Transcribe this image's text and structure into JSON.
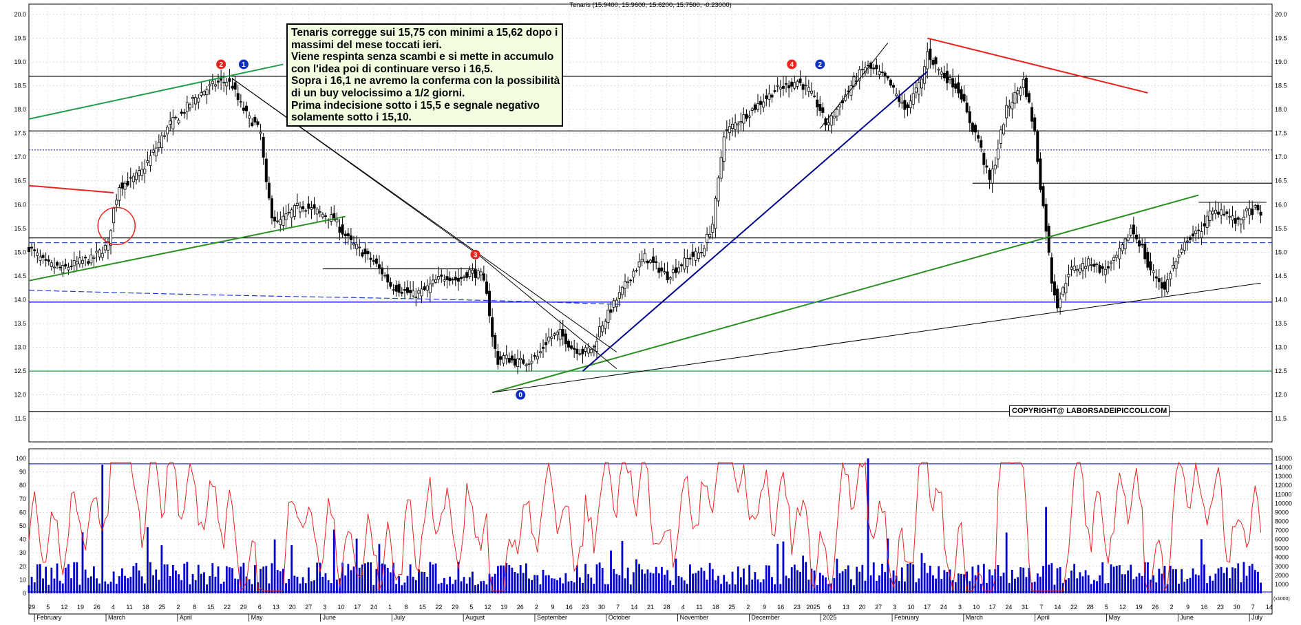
{
  "chart_data": [
    {
      "type": "candlestick",
      "title": "Tenaris (15.9400, 15.9600, 15.6200, 15.7500, -0.23000)",
      "y_ticks": [
        "20.0",
        "19.5",
        "19.0",
        "18.5",
        "18.0",
        "17.5",
        "17.0",
        "16.5",
        "16.0",
        "15.5",
        "15.0",
        "14.5",
        "14.0",
        "13.5",
        "13.0",
        "12.5",
        "12.0",
        "11.5"
      ],
      "ylim": [
        11.3,
        20.1
      ],
      "close_path": [
        [
          0,
          15.1
        ],
        [
          6,
          14.75
        ],
        [
          12,
          14.65
        ],
        [
          18,
          14.8
        ],
        [
          22,
          14.85
        ],
        [
          26,
          15.05
        ],
        [
          28,
          15.15
        ],
        [
          30,
          15.9
        ],
        [
          32,
          16.4
        ],
        [
          36,
          16.5
        ],
        [
          40,
          16.7
        ],
        [
          44,
          17.1
        ],
        [
          48,
          17.5
        ],
        [
          50,
          17.7
        ],
        [
          54,
          17.9
        ],
        [
          58,
          18.2
        ],
        [
          62,
          18.4
        ],
        [
          66,
          18.55
        ],
        [
          70,
          18.6
        ],
        [
          72,
          18.5
        ],
        [
          74,
          18.2
        ],
        [
          78,
          17.8
        ],
        [
          80,
          17.7
        ],
        [
          82,
          17.5
        ],
        [
          84,
          16.4
        ],
        [
          86,
          15.8
        ],
        [
          88,
          15.6
        ],
        [
          92,
          15.8
        ],
        [
          96,
          16.0
        ],
        [
          100,
          15.9
        ],
        [
          104,
          15.8
        ],
        [
          108,
          15.7
        ],
        [
          110,
          15.5
        ],
        [
          114,
          15.2
        ],
        [
          118,
          15.0
        ],
        [
          122,
          14.8
        ],
        [
          126,
          14.5
        ],
        [
          128,
          14.3
        ],
        [
          132,
          14.2
        ],
        [
          136,
          14.1
        ],
        [
          140,
          14.2
        ],
        [
          144,
          14.4
        ],
        [
          148,
          14.5
        ],
        [
          152,
          14.4
        ],
        [
          156,
          14.6
        ],
        [
          160,
          14.5
        ],
        [
          162,
          14.2
        ],
        [
          164,
          13.2
        ],
        [
          166,
          12.7
        ],
        [
          168,
          12.8
        ],
        [
          172,
          12.7
        ],
        [
          176,
          12.7
        ],
        [
          180,
          12.8
        ],
        [
          184,
          13.2
        ],
        [
          188,
          13.3
        ],
        [
          192,
          13.0
        ],
        [
          196,
          12.9
        ],
        [
          200,
          13.0
        ],
        [
          202,
          13.4
        ],
        [
          206,
          13.8
        ],
        [
          210,
          14.2
        ],
        [
          214,
          14.6
        ],
        [
          218,
          14.9
        ],
        [
          222,
          14.7
        ],
        [
          226,
          14.5
        ],
        [
          230,
          14.7
        ],
        [
          234,
          14.9
        ],
        [
          238,
          15.0
        ],
        [
          240,
          15.3
        ],
        [
          242,
          15.6
        ],
        [
          244,
          16.5
        ],
        [
          246,
          17.5
        ],
        [
          248,
          17.6
        ],
        [
          252,
          17.8
        ],
        [
          256,
          18.0
        ],
        [
          260,
          18.2
        ],
        [
          264,
          18.4
        ],
        [
          268,
          18.5
        ],
        [
          272,
          18.6
        ],
        [
          276,
          18.4
        ],
        [
          280,
          18.0
        ],
        [
          282,
          17.7
        ],
        [
          284,
          17.8
        ],
        [
          288,
          18.2
        ],
        [
          292,
          18.6
        ],
        [
          296,
          18.9
        ],
        [
          300,
          18.8
        ],
        [
          304,
          18.6
        ],
        [
          308,
          18.2
        ],
        [
          310,
          18.0
        ],
        [
          312,
          18.2
        ],
        [
          316,
          18.6
        ],
        [
          318,
          19.2
        ],
        [
          320,
          19.0
        ],
        [
          324,
          18.7
        ],
        [
          328,
          18.5
        ],
        [
          330,
          18.3
        ],
        [
          332,
          17.9
        ],
        [
          334,
          17.6
        ],
        [
          336,
          17.4
        ],
        [
          338,
          16.9
        ],
        [
          340,
          16.5
        ],
        [
          342,
          16.9
        ],
        [
          344,
          17.5
        ],
        [
          346,
          18.0
        ],
        [
          348,
          18.2
        ],
        [
          352,
          18.6
        ],
        [
          354,
          18.1
        ],
        [
          356,
          17.5
        ],
        [
          358,
          16.4
        ],
        [
          360,
          15.5
        ],
        [
          362,
          14.4
        ],
        [
          364,
          13.9
        ],
        [
          366,
          14.2
        ],
        [
          368,
          14.6
        ],
        [
          372,
          14.7
        ],
        [
          376,
          14.8
        ],
        [
          380,
          14.6
        ],
        [
          384,
          14.8
        ],
        [
          388,
          15.2
        ],
        [
          390,
          15.5
        ],
        [
          392,
          15.3
        ],
        [
          394,
          15.1
        ],
        [
          396,
          14.7
        ],
        [
          400,
          14.4
        ],
        [
          402,
          14.2
        ],
        [
          404,
          14.6
        ],
        [
          408,
          15.0
        ],
        [
          410,
          15.3
        ],
        [
          414,
          15.4
        ],
        [
          418,
          15.8
        ],
        [
          422,
          15.9
        ],
        [
          426,
          15.7
        ],
        [
          428,
          15.6
        ],
        [
          430,
          15.8
        ],
        [
          434,
          15.9
        ],
        [
          436,
          15.75
        ]
      ],
      "trendlines": [
        {
          "color": "#1f9e4a",
          "from": [
            0,
            17.8
          ],
          "to": [
            90,
            18.95
          ]
        },
        {
          "color": "#2a8f1f",
          "from": [
            0,
            14.4
          ],
          "to": [
            112,
            15.75
          ]
        },
        {
          "color": "#2a8f1f",
          "from": [
            164,
            12.05
          ],
          "to": [
            414,
            16.2
          ]
        },
        {
          "color": "#e8241f",
          "from": [
            0,
            16.4
          ],
          "to": [
            30,
            16.25
          ]
        },
        {
          "color": "#e8241f",
          "from": [
            318,
            19.5
          ],
          "to": [
            396,
            18.35
          ]
        },
        {
          "color": "#00008c",
          "from": [
            196,
            12.5
          ],
          "to": [
            318,
            18.8
          ]
        },
        {
          "color": "#000000",
          "from": [
            72,
            18.65
          ],
          "to": [
            208,
            12.9
          ]
        },
        {
          "color": "#000000",
          "from": [
            72,
            18.65
          ],
          "to": [
            160,
            14.9
          ]
        },
        {
          "color": "#000000",
          "from": [
            160,
            14.9
          ],
          "to": [
            208,
            12.55
          ]
        },
        {
          "color": "#000000",
          "from": [
            164,
            12.05
          ],
          "to": [
            436,
            14.35
          ]
        },
        {
          "color": "#000000",
          "from": [
            280,
            17.6
          ],
          "to": [
            304,
            19.4
          ]
        }
      ],
      "horizontal_levels": [
        {
          "value": 18.7,
          "color": "#000000"
        },
        {
          "value": 17.55,
          "color": "#000000"
        },
        {
          "value": 17.15,
          "color": "#3030c0",
          "dotted": true
        },
        {
          "value": 16.45,
          "color": "#000000",
          "from": 334
        },
        {
          "value": 15.3,
          "color": "#000000"
        },
        {
          "value": 15.2,
          "color": "#2040d0",
          "dashed": true
        },
        {
          "value": 14.65,
          "color": "#000000",
          "from": 104,
          "to": 158
        },
        {
          "value": 16.05,
          "color": "#000000",
          "from": 414,
          "to": 438
        },
        {
          "value": 13.95,
          "color": "#0000e0"
        },
        {
          "value": 12.5,
          "color": "#1f9e4a"
        },
        {
          "value": 11.65,
          "color": "#000000"
        }
      ],
      "markers": [
        {
          "label": "2",
          "color": "#e8241f",
          "t": 68,
          "y": 18.95
        },
        {
          "label": "1",
          "color": "#1030c0",
          "t": 76,
          "y": 18.95
        },
        {
          "label": "3",
          "color": "#e8241f",
          "t": 158,
          "y": 14.95
        },
        {
          "label": "0",
          "color": "#1030c0",
          "t": 174,
          "y": 12.0
        },
        {
          "label": "4",
          "color": "#e8241f",
          "t": 270,
          "y": 18.95
        },
        {
          "label": "2",
          "color": "#1030c0",
          "t": 280,
          "y": 18.95
        }
      ],
      "annotation_lines": [
        "Tenaris corregge sui 15,75 con minimi a 15,62 dopo i",
        "massimi del mese toccati ieri.",
        "Viene respinta senza scambi e si mette in accumulo",
        "con l'idea poi di continuare verso i 16,5.",
        "Sopra i 16,1 ne avremo la conferma con la possibilità",
        "di un buy velocissimo a 1/2 giorni.",
        "Prima indecisione sotto i 15,5 e segnale negativo",
        "solamente sotto i 15,10."
      ],
      "copyright": "COPYRIGHT@ LABORSADEIPICCOLI.COM"
    },
    {
      "type": "line",
      "series_color": "#e8241f",
      "left_ticks": [
        "100",
        "90",
        "80",
        "70",
        "60",
        "50",
        "40",
        "30",
        "20",
        "10",
        "0"
      ],
      "right_ticks": [
        "15000",
        "14000",
        "13000",
        "12000",
        "11000",
        "10000",
        "9000",
        "8000",
        "7000",
        "6000",
        "5000",
        "4000",
        "3000",
        "2000",
        "1000"
      ],
      "right_label": "(x1000)",
      "volume_type": "bar",
      "volume_color": "#0000cc",
      "levels": [
        96,
        1
      ]
    }
  ],
  "x_axis": {
    "day_ticks": [
      "29",
      "5",
      "12",
      "19",
      "26",
      "4",
      "11",
      "18",
      "25",
      "2",
      "8",
      "15",
      "22",
      "29",
      "6",
      "13",
      "20",
      "27",
      "3",
      "10",
      "17",
      "24",
      "1",
      "8",
      "15",
      "22",
      "29",
      "5",
      "12",
      "19",
      "26",
      "2",
      "9",
      "16",
      "23",
      "30",
      "7",
      "14",
      "21",
      "28",
      "4",
      "11",
      "18",
      "25",
      "2",
      "9",
      "16",
      "23",
      "2025",
      "6",
      "13",
      "20",
      "27",
      "3",
      "10",
      "17",
      "24",
      "3",
      "10",
      "17",
      "24",
      "31",
      "7",
      "14",
      "22",
      "28",
      "5",
      "12",
      "19",
      "26",
      "2",
      "9",
      "16",
      "23",
      "30",
      "7",
      "14"
    ],
    "months": [
      "February",
      "March",
      "April",
      "May",
      "June",
      "July",
      "August",
      "September",
      "October",
      "November",
      "December",
      "2025",
      "February",
      "March",
      "April",
      "May",
      "June",
      "July"
    ]
  }
}
